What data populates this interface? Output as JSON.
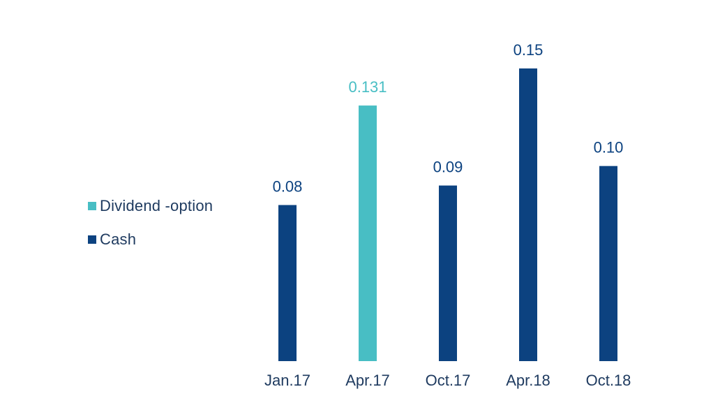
{
  "chart_data": {
    "type": "bar",
    "categories": [
      "Jan.17",
      "Apr.17",
      "Oct.17",
      "Apr.18",
      "Oct.18"
    ],
    "values": [
      0.08,
      0.131,
      0.09,
      0.15,
      0.1
    ],
    "value_labels": [
      "0.08",
      "0.131",
      "0.09",
      "0.15",
      "0.10"
    ],
    "bar_series": [
      "Cash",
      "Dividend -option",
      "Cash",
      "Cash",
      "Cash"
    ],
    "series": [
      {
        "name": "Dividend -option",
        "color": "#48bec4"
      },
      {
        "name": "Cash",
        "color": "#0c4280"
      }
    ],
    "title": "",
    "xlabel": "",
    "ylabel": "",
    "ylim": [
      0,
      0.15
    ],
    "grid": false,
    "legend_position": "left"
  }
}
